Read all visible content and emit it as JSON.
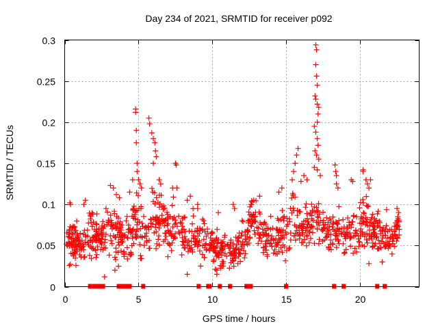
{
  "chart_data": {
    "type": "scatter",
    "title": "Day 234 of 2021, SRMTID for receiver p092",
    "xlabel": "GPS time / hours",
    "ylabel": "SRMTID / TECUs",
    "xlim": [
      0,
      24
    ],
    "ylim": [
      0,
      0.3
    ],
    "xticks": [
      0,
      5,
      10,
      15,
      20
    ],
    "xtick_labels": [
      "0",
      "5",
      "10",
      "15",
      "20"
    ],
    "yticks": [
      0,
      0.05,
      0.1,
      0.15,
      0.2,
      0.25,
      0.3
    ],
    "ytick_labels": [
      "0",
      "0.05",
      "0.1",
      "0.15",
      "0.2",
      "0.25",
      "0.3"
    ],
    "grid": true,
    "legend": "none",
    "series": [
      {
        "name": "SRMTID",
        "marker": "plus",
        "color": "#ff0000",
        "envelope": [
          {
            "x": 0.0,
            "mean": 0.055,
            "spread": 0.02
          },
          {
            "x": 0.5,
            "mean": 0.055,
            "spread": 0.025
          },
          {
            "x": 1.0,
            "mean": 0.05,
            "spread": 0.02
          },
          {
            "x": 1.5,
            "mean": 0.06,
            "spread": 0.025
          },
          {
            "x": 2.0,
            "mean": 0.06,
            "spread": 0.02
          },
          {
            "x": 2.5,
            "mean": 0.055,
            "spread": 0.02
          },
          {
            "x": 3.0,
            "mean": 0.07,
            "spread": 0.03
          },
          {
            "x": 3.5,
            "mean": 0.065,
            "spread": 0.03
          },
          {
            "x": 4.0,
            "mean": 0.06,
            "spread": 0.025
          },
          {
            "x": 4.5,
            "mean": 0.065,
            "spread": 0.03
          },
          {
            "x": 5.0,
            "mean": 0.075,
            "spread": 0.035
          },
          {
            "x": 5.5,
            "mean": 0.06,
            "spread": 0.025
          },
          {
            "x": 6.0,
            "mean": 0.08,
            "spread": 0.035
          },
          {
            "x": 6.5,
            "mean": 0.085,
            "spread": 0.03
          },
          {
            "x": 7.0,
            "mean": 0.07,
            "spread": 0.025
          },
          {
            "x": 7.5,
            "mean": 0.075,
            "spread": 0.025
          },
          {
            "x": 8.0,
            "mean": 0.065,
            "spread": 0.025
          },
          {
            "x": 8.5,
            "mean": 0.055,
            "spread": 0.025
          },
          {
            "x": 9.0,
            "mean": 0.06,
            "spread": 0.025
          },
          {
            "x": 9.5,
            "mean": 0.06,
            "spread": 0.025
          },
          {
            "x": 10.0,
            "mean": 0.05,
            "spread": 0.02
          },
          {
            "x": 10.5,
            "mean": 0.04,
            "spread": 0.02
          },
          {
            "x": 11.0,
            "mean": 0.045,
            "spread": 0.02
          },
          {
            "x": 11.5,
            "mean": 0.04,
            "spread": 0.015
          },
          {
            "x": 12.0,
            "mean": 0.05,
            "spread": 0.02
          },
          {
            "x": 12.5,
            "mean": 0.075,
            "spread": 0.025
          },
          {
            "x": 13.0,
            "mean": 0.08,
            "spread": 0.02
          },
          {
            "x": 13.5,
            "mean": 0.06,
            "spread": 0.02
          },
          {
            "x": 14.0,
            "mean": 0.06,
            "spread": 0.02
          },
          {
            "x": 14.5,
            "mean": 0.065,
            "spread": 0.025
          },
          {
            "x": 15.0,
            "mean": 0.07,
            "spread": 0.025
          },
          {
            "x": 15.5,
            "mean": 0.09,
            "spread": 0.035
          },
          {
            "x": 16.0,
            "mean": 0.065,
            "spread": 0.02
          },
          {
            "x": 16.5,
            "mean": 0.08,
            "spread": 0.025
          },
          {
            "x": 17.0,
            "mean": 0.085,
            "spread": 0.03
          },
          {
            "x": 17.5,
            "mean": 0.07,
            "spread": 0.02
          },
          {
            "x": 18.0,
            "mean": 0.065,
            "spread": 0.02
          },
          {
            "x": 18.5,
            "mean": 0.07,
            "spread": 0.025
          },
          {
            "x": 19.0,
            "mean": 0.065,
            "spread": 0.02
          },
          {
            "x": 19.5,
            "mean": 0.07,
            "spread": 0.025
          },
          {
            "x": 20.0,
            "mean": 0.075,
            "spread": 0.025
          },
          {
            "x": 20.5,
            "mean": 0.075,
            "spread": 0.025
          },
          {
            "x": 21.0,
            "mean": 0.065,
            "spread": 0.02
          },
          {
            "x": 21.5,
            "mean": 0.065,
            "spread": 0.02
          },
          {
            "x": 22.0,
            "mean": 0.06,
            "spread": 0.02
          },
          {
            "x": 22.5,
            "mean": 0.07,
            "spread": 0.02
          }
        ],
        "highlights": [
          [
            0.4,
            0.1
          ],
          [
            0.35,
            0.102
          ],
          [
            1.3,
            0.1
          ],
          [
            1.4,
            0.105
          ],
          [
            2.8,
            0.095
          ],
          [
            3.1,
            0.123
          ],
          [
            3.3,
            0.12
          ],
          [
            3.5,
            0.112
          ],
          [
            3.7,
            0.108
          ],
          [
            2.7,
            0.012
          ],
          [
            3.4,
            0.02
          ],
          [
            4.4,
            0.115
          ],
          [
            4.6,
            0.13
          ],
          [
            4.8,
            0.216
          ],
          [
            4.8,
            0.212
          ],
          [
            4.85,
            0.19
          ],
          [
            4.85,
            0.175
          ],
          [
            4.9,
            0.15
          ],
          [
            4.9,
            0.14
          ],
          [
            5.0,
            0.13
          ],
          [
            5.1,
            0.125
          ],
          [
            5.2,
            0.12
          ],
          [
            5.7,
            0.205
          ],
          [
            5.75,
            0.198
          ],
          [
            5.9,
            0.187
          ],
          [
            6.0,
            0.18
          ],
          [
            6.1,
            0.175
          ],
          [
            6.15,
            0.165
          ],
          [
            6.2,
            0.158
          ],
          [
            6.0,
            0.15
          ],
          [
            6.4,
            0.13
          ],
          [
            6.5,
            0.125
          ],
          [
            7.5,
            0.15
          ],
          [
            7.55,
            0.148
          ],
          [
            7.3,
            0.12
          ],
          [
            7.6,
            0.12
          ],
          [
            8.5,
            0.11
          ],
          [
            8.3,
            0.105
          ],
          [
            9.0,
            0.095
          ],
          [
            9.0,
            0.1
          ],
          [
            10.4,
            0.09
          ],
          [
            11.4,
            0.1
          ],
          [
            11.5,
            0.095
          ],
          [
            12.6,
            0.1
          ],
          [
            12.8,
            0.105
          ],
          [
            13.2,
            0.11
          ],
          [
            9.2,
            0.025
          ],
          [
            10.3,
            0.02
          ],
          [
            10.3,
            0.015
          ],
          [
            8.3,
            0.015
          ],
          [
            14.5,
            0.115
          ],
          [
            14.7,
            0.12
          ],
          [
            15.4,
            0.13
          ],
          [
            15.5,
            0.14
          ],
          [
            15.6,
            0.15
          ],
          [
            15.7,
            0.16
          ],
          [
            15.8,
            0.168
          ],
          [
            17.0,
            0.294
          ],
          [
            17.05,
            0.288
          ],
          [
            17.0,
            0.27
          ],
          [
            17.05,
            0.256
          ],
          [
            17.1,
            0.245
          ],
          [
            16.95,
            0.232
          ],
          [
            17.0,
            0.228
          ],
          [
            17.1,
            0.222
          ],
          [
            17.2,
            0.218
          ],
          [
            17.15,
            0.21
          ],
          [
            17.1,
            0.2
          ],
          [
            16.9,
            0.195
          ],
          [
            17.0,
            0.188
          ],
          [
            17.1,
            0.18
          ],
          [
            17.15,
            0.172
          ],
          [
            16.95,
            0.165
          ],
          [
            17.05,
            0.16
          ],
          [
            17.2,
            0.155
          ],
          [
            16.9,
            0.145
          ],
          [
            17.1,
            0.142
          ],
          [
            17.3,
            0.135
          ],
          [
            16.0,
            0.128
          ],
          [
            16.2,
            0.135
          ],
          [
            16.4,
            0.13
          ],
          [
            18.3,
            0.148
          ],
          [
            18.35,
            0.14
          ],
          [
            18.4,
            0.135
          ],
          [
            18.4,
            0.125
          ],
          [
            18.5,
            0.12
          ],
          [
            19.4,
            0.13
          ],
          [
            19.5,
            0.128
          ],
          [
            20.2,
            0.142
          ],
          [
            20.2,
            0.14
          ],
          [
            20.4,
            0.13
          ],
          [
            20.5,
            0.125
          ],
          [
            20.6,
            0.12
          ],
          [
            20.7,
            0.13
          ],
          [
            22.5,
            0.095
          ],
          [
            22.6,
            0.09
          ],
          [
            22.55,
            0.085
          ],
          [
            22.5,
            0.08
          ],
          [
            22.55,
            0.075
          ],
          [
            20.6,
            0.028
          ],
          [
            21.5,
            0.03
          ]
        ]
      }
    ],
    "zero_markers": {
      "marker": "square",
      "color": "#ff0000",
      "value": 0,
      "x": [
        1.72,
        2.0,
        2.27,
        2.41,
        2.59,
        3.66,
        3.8,
        3.98,
        4.12,
        4.26,
        4.4,
        5.32,
        9.07,
        9.72,
        9.81,
        10.51,
        11.2,
        12.31,
        12.59,
        14.99,
        18.24,
        18.89,
        21.16,
        21.67
      ]
    }
  }
}
